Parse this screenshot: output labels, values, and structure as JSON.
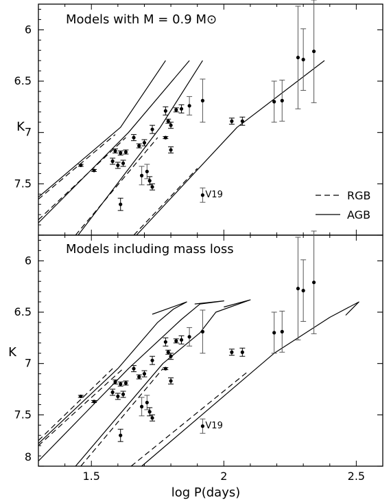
{
  "chart_data": [
    {
      "type": "line",
      "panel": "top",
      "title": "Models with M = 0.9 M⊙",
      "xlabel": "log P(days)",
      "ylabel": "K",
      "xlim": [
        1.3,
        2.6
      ],
      "ylim": [
        8,
        5.75
      ],
      "y_inverted": true,
      "y_ticks": [
        "6",
        "6.5",
        "7",
        "7.5",
        "8"
      ],
      "x_ticks": [
        "1.5",
        "2",
        "2.5"
      ],
      "legend": {
        "position": "bottom-right",
        "entries": [
          {
            "label": "RGB",
            "style": "dashed"
          },
          {
            "label": "AGB",
            "style": "solid"
          }
        ]
      },
      "series": [
        {
          "style": "dashed",
          "points": [
            [
              1.3,
              7.65
            ],
            [
              1.59,
              7.02
            ]
          ]
        },
        {
          "style": "dashed",
          "points": [
            [
              1.3,
              7.85
            ],
            [
              1.63,
              7.05
            ]
          ]
        },
        {
          "style": "dashed",
          "points": [
            [
              1.44,
              8.0
            ],
            [
              1.75,
              7.05
            ]
          ]
        },
        {
          "style": "dashed",
          "points": [
            [
              1.66,
              8.0
            ],
            [
              1.9,
              7.35
            ]
          ]
        },
        {
          "style": "solid",
          "points": [
            [
              1.3,
              7.63
            ],
            [
              1.61,
              6.95
            ],
            [
              1.78,
              6.3
            ]
          ]
        },
        {
          "style": "solid",
          "points": [
            [
              1.3,
              7.88
            ],
            [
              1.64,
              7.0
            ],
            [
              1.87,
              6.3
            ]
          ]
        },
        {
          "style": "solid",
          "points": [
            [
              1.45,
              8.0
            ],
            [
              1.76,
              6.95
            ],
            [
              1.92,
              6.3
            ]
          ]
        },
        {
          "style": "solid",
          "points": [
            [
              1.67,
              8.0
            ],
            [
              2.05,
              6.95
            ],
            [
              2.38,
              6.3
            ]
          ]
        }
      ],
      "points": [
        {
          "x": 1.46,
          "y": 7.32,
          "err": 0.01
        },
        {
          "x": 1.51,
          "y": 7.37,
          "err": 0.01
        },
        {
          "x": 1.58,
          "y": 7.28,
          "err": 0.03
        },
        {
          "x": 1.59,
          "y": 7.18,
          "err": 0.02
        },
        {
          "x": 1.6,
          "y": 7.32,
          "err": 0.03
        },
        {
          "x": 1.61,
          "y": 7.7,
          "err": 0.06
        },
        {
          "x": 1.61,
          "y": 7.2,
          "err": 0.02
        },
        {
          "x": 1.62,
          "y": 7.3,
          "err": 0.03
        },
        {
          "x": 1.63,
          "y": 7.19,
          "err": 0.02
        },
        {
          "x": 1.66,
          "y": 7.05,
          "err": 0.03
        },
        {
          "x": 1.68,
          "y": 7.13,
          "err": 0.02
        },
        {
          "x": 1.69,
          "y": 7.42,
          "err": 0.09
        },
        {
          "x": 1.7,
          "y": 7.1,
          "err": 0.03
        },
        {
          "x": 1.71,
          "y": 7.38,
          "err": 0.07
        },
        {
          "x": 1.72,
          "y": 7.47,
          "err": 0.04
        },
        {
          "x": 1.73,
          "y": 7.53,
          "err": 0.03
        },
        {
          "x": 1.73,
          "y": 6.97,
          "err": 0.04
        },
        {
          "x": 1.78,
          "y": 7.05,
          "err": 0.01
        },
        {
          "x": 1.78,
          "y": 6.79,
          "err": 0.04
        },
        {
          "x": 1.79,
          "y": 6.89,
          "err": 0.02
        },
        {
          "x": 1.8,
          "y": 7.17,
          "err": 0.03
        },
        {
          "x": 1.8,
          "y": 6.93,
          "err": 0.03
        },
        {
          "x": 1.82,
          "y": 6.78,
          "err": 0.02
        },
        {
          "x": 1.84,
          "y": 6.77,
          "err": 0.04
        },
        {
          "x": 1.87,
          "y": 6.74,
          "err": 0.09
        },
        {
          "x": 1.92,
          "y": 6.69,
          "err": 0.21
        },
        {
          "x": 1.92,
          "y": 7.61,
          "err": 0.07,
          "label": "V19"
        },
        {
          "x": 2.03,
          "y": 6.89,
          "err": 0.03
        },
        {
          "x": 2.07,
          "y": 6.89,
          "err": 0.04
        },
        {
          "x": 2.19,
          "y": 6.7,
          "err": 0.2
        },
        {
          "x": 2.22,
          "y": 6.69,
          "err": 0.2
        },
        {
          "x": 2.28,
          "y": 6.27,
          "err": 0.5
        },
        {
          "x": 2.3,
          "y": 6.29,
          "err": 0.3
        },
        {
          "x": 2.34,
          "y": 6.21,
          "err": 0.5
        }
      ]
    },
    {
      "type": "line",
      "panel": "bottom",
      "title": "Models including mass loss",
      "xlabel": "log P(days)",
      "ylabel": "K",
      "xlim": [
        1.3,
        2.6
      ],
      "ylim": [
        8,
        5.75
      ],
      "y_inverted": true,
      "y_ticks": [
        "6",
        "6.5",
        "7",
        "7.5",
        "8"
      ],
      "x_ticks": [
        "1.5",
        "2",
        "2.5"
      ],
      "series": [
        {
          "style": "dashed",
          "points": [
            [
              1.3,
              7.75
            ],
            [
              1.58,
              7.05
            ]
          ]
        },
        {
          "style": "dashed",
          "points": [
            [
              1.3,
              7.8
            ],
            [
              1.62,
              7.05
            ]
          ]
        },
        {
          "style": "dashed",
          "points": [
            [
              1.46,
              8.0
            ],
            [
              1.77,
              7.05
            ]
          ]
        },
        {
          "style": "dashed",
          "points": [
            [
              1.65,
              8.0
            ],
            [
              2.09,
              7.08
            ]
          ]
        },
        {
          "style": "solid",
          "points": [
            [
              1.3,
              7.78
            ],
            [
              1.6,
              7.05
            ],
            [
              1.75,
              6.6
            ],
            [
              1.81,
              6.47
            ],
            [
              1.86,
              6.4
            ],
            [
              1.73,
              6.52
            ]
          ]
        },
        {
          "style": "solid",
          "points": [
            [
              1.3,
              7.95
            ],
            [
              1.64,
              7.05
            ],
            [
              1.84,
              6.57
            ],
            [
              1.91,
              6.42
            ],
            [
              2.0,
              6.39
            ],
            [
              1.89,
              6.42
            ]
          ]
        },
        {
          "style": "solid",
          "points": [
            [
              1.44,
              8.0
            ],
            [
              1.77,
              7.0
            ],
            [
              1.91,
              6.7
            ],
            [
              1.97,
              6.5
            ],
            [
              2.1,
              6.38
            ],
            [
              2.0,
              6.45
            ]
          ]
        },
        {
          "style": "solid",
          "points": [
            [
              1.69,
              8.0
            ],
            [
              2.19,
              6.9
            ],
            [
              2.4,
              6.55
            ],
            [
              2.51,
              6.4
            ],
            [
              2.46,
              6.53
            ]
          ]
        }
      ],
      "points": [
        {
          "x": 1.46,
          "y": 7.32,
          "err": 0.01
        },
        {
          "x": 1.51,
          "y": 7.37,
          "err": 0.01
        },
        {
          "x": 1.58,
          "y": 7.28,
          "err": 0.03
        },
        {
          "x": 1.59,
          "y": 7.18,
          "err": 0.02
        },
        {
          "x": 1.6,
          "y": 7.32,
          "err": 0.03
        },
        {
          "x": 1.61,
          "y": 7.7,
          "err": 0.06
        },
        {
          "x": 1.61,
          "y": 7.2,
          "err": 0.02
        },
        {
          "x": 1.62,
          "y": 7.3,
          "err": 0.03
        },
        {
          "x": 1.63,
          "y": 7.19,
          "err": 0.02
        },
        {
          "x": 1.66,
          "y": 7.05,
          "err": 0.03
        },
        {
          "x": 1.68,
          "y": 7.13,
          "err": 0.02
        },
        {
          "x": 1.69,
          "y": 7.42,
          "err": 0.09
        },
        {
          "x": 1.7,
          "y": 7.1,
          "err": 0.03
        },
        {
          "x": 1.71,
          "y": 7.38,
          "err": 0.07
        },
        {
          "x": 1.72,
          "y": 7.47,
          "err": 0.04
        },
        {
          "x": 1.73,
          "y": 7.53,
          "err": 0.03
        },
        {
          "x": 1.73,
          "y": 6.97,
          "err": 0.04
        },
        {
          "x": 1.78,
          "y": 7.05,
          "err": 0.01
        },
        {
          "x": 1.78,
          "y": 6.79,
          "err": 0.04
        },
        {
          "x": 1.79,
          "y": 6.89,
          "err": 0.02
        },
        {
          "x": 1.8,
          "y": 7.17,
          "err": 0.03
        },
        {
          "x": 1.8,
          "y": 6.93,
          "err": 0.03
        },
        {
          "x": 1.82,
          "y": 6.78,
          "err": 0.02
        },
        {
          "x": 1.84,
          "y": 6.77,
          "err": 0.04
        },
        {
          "x": 1.87,
          "y": 6.74,
          "err": 0.09
        },
        {
          "x": 1.92,
          "y": 6.69,
          "err": 0.21
        },
        {
          "x": 1.92,
          "y": 7.61,
          "err": 0.07,
          "label": "V19"
        },
        {
          "x": 2.03,
          "y": 6.89,
          "err": 0.03
        },
        {
          "x": 2.07,
          "y": 6.89,
          "err": 0.04
        },
        {
          "x": 2.19,
          "y": 6.7,
          "err": 0.2
        },
        {
          "x": 2.22,
          "y": 6.69,
          "err": 0.2
        },
        {
          "x": 2.28,
          "y": 6.27,
          "err": 0.5
        },
        {
          "x": 2.3,
          "y": 6.29,
          "err": 0.3
        },
        {
          "x": 2.34,
          "y": 6.21,
          "err": 0.5
        }
      ]
    }
  ]
}
